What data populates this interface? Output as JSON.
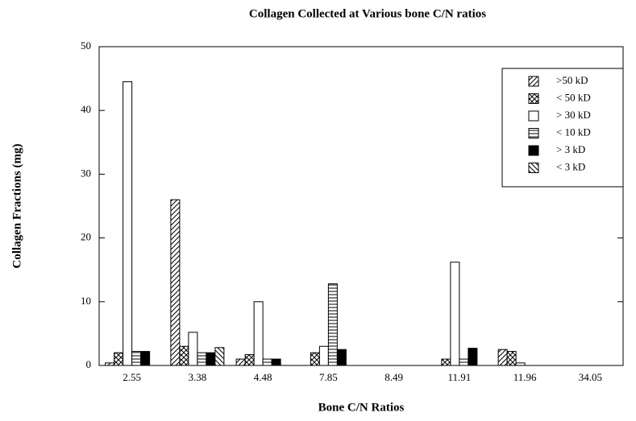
{
  "chart_data": {
    "type": "bar",
    "title": "Collagen Collected at Various bone C/N ratios",
    "x_label": "Bone C/N Ratios",
    "y_label": "Collagen Fractions (mg)",
    "categories": [
      "2.55",
      "3.38",
      "4.48",
      "7.85",
      "8.49",
      "11.91",
      "11.96",
      "34.05"
    ],
    "series": [
      {
        "name": ">50 kD",
        "pattern": "diagonal",
        "values": [
          0.4,
          26,
          1,
          0,
          0,
          0,
          2.5,
          0
        ]
      },
      {
        "name": "< 50 kD",
        "pattern": "crosshatch",
        "values": [
          2,
          3,
          1.7,
          2,
          0,
          1,
          2.2,
          0
        ]
      },
      {
        "name": "> 30 kD",
        "pattern": "white",
        "values": [
          44.5,
          5.2,
          10,
          3,
          0,
          16.2,
          0.4,
          0
        ]
      },
      {
        "name": "< 10 kD",
        "pattern": "horizontal",
        "values": [
          2.2,
          2,
          1,
          12.8,
          0,
          1,
          0,
          0
        ]
      },
      {
        "name": "> 3 kD",
        "pattern": "black",
        "values": [
          2.2,
          2,
          1,
          2.5,
          0,
          2.7,
          0,
          0
        ]
      },
      {
        "name": "< 3 kD",
        "pattern": "backslash",
        "values": [
          0,
          2.8,
          0,
          0,
          0,
          0,
          0,
          0
        ]
      }
    ],
    "ylim": [
      0,
      50
    ],
    "yticks": [
      0,
      10,
      20,
      30,
      40,
      50
    ],
    "legend": "upper right"
  }
}
